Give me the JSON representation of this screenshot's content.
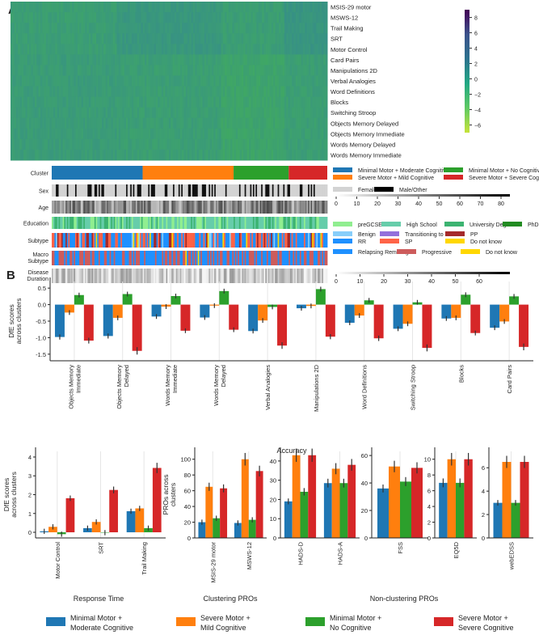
{
  "panel_labels": {
    "a": "A",
    "b": "B"
  },
  "heatmap": {
    "rows": [
      "MSIS-29 motor",
      "MSWS-12",
      "Trail Making",
      "SRT",
      "Motor Control",
      "Card Pairs",
      "Manipulations 2D",
      "Verbal Analogies",
      "Word Definitions",
      "Blocks",
      "Switching Stroop",
      "Objects Memory Delayed",
      "Objects Memory Immediate",
      "Words Memory Delayed",
      "Words Memory Immediate"
    ],
    "colorbar_ticks": [
      "8",
      "6",
      "4",
      "2",
      "0",
      "−2",
      "−4",
      "−6"
    ],
    "colorbar_range": [
      -7,
      9
    ]
  },
  "annotations": {
    "rows": [
      "Cluster",
      "Sex",
      "Age",
      "Education",
      "Subtype",
      "Macro Subtype",
      "Disease Duration"
    ],
    "cluster_legend": [
      {
        "label": "Minimal Motor + Moderate Cognitive",
        "color": "#1f77b4"
      },
      {
        "label": "Minimal Motor + No Cognitive",
        "color": "#2ca02c"
      },
      {
        "label": "Severe Motor + Mild Cognitive",
        "color": "#ff7f0e"
      },
      {
        "label": "Severe Motor + Severe Cognitive",
        "color": "#d62728"
      }
    ],
    "cluster_fractions": [
      0.33,
      0.33,
      0.2,
      0.14
    ],
    "sex_legend": [
      {
        "label": "Female",
        "color": "#d3d3d3"
      },
      {
        "label": "Male/Other",
        "color": "#000000"
      }
    ],
    "age_ticks": [
      "0",
      "10",
      "20",
      "30",
      "40",
      "50",
      "60",
      "70",
      "80"
    ],
    "education_legend": [
      {
        "label": "preGCSE",
        "color": "#90ee90"
      },
      {
        "label": "High School",
        "color": "#66cdaa"
      },
      {
        "label": "University Degree",
        "color": "#3cb371"
      },
      {
        "label": "PhD",
        "color": "#228b22"
      }
    ],
    "subtype_legend": [
      {
        "label": "Benign",
        "color": "#87cefa"
      },
      {
        "label": "Transitioning to SP",
        "color": "#9370db"
      },
      {
        "label": "PP",
        "color": "#a52a2a"
      },
      {
        "label": "RR",
        "color": "#1e90ff"
      },
      {
        "label": "SP",
        "color": "#ff6347"
      },
      {
        "label": "Do not know",
        "color": "#ffd700"
      }
    ],
    "macro_legend": [
      {
        "label": "Relapsing Remitting",
        "color": "#1e90ff"
      },
      {
        "label": "Progressive",
        "color": "#cd5c5c"
      },
      {
        "label": "Do not know",
        "color": "#ffd700"
      }
    ],
    "duration_ticks": [
      "0",
      "10",
      "20",
      "30",
      "40",
      "50",
      "60"
    ]
  },
  "colors": [
    "#1f77b4",
    "#ff7f0e",
    "#2ca02c",
    "#d62728"
  ],
  "chart_data": [
    {
      "type": "bar",
      "id": "accuracy",
      "xlabel": "Accuracy",
      "ylabel": "DfE scores across clusters",
      "ylim": [
        -1.7,
        0.7
      ],
      "yticks": [
        0.5,
        0.0,
        -0.5,
        -1.0,
        -1.5
      ],
      "tick_fmt": 1,
      "categories": [
        "Objects Memory Immediate",
        "Objects Memory Delayed",
        "Words Memory Immediate",
        "Words Memory Delayed",
        "Verbal Analogies",
        "Manipulations 2D",
        "Word Definitions",
        "Switching Stroop",
        "Blocks",
        "Card Pairs"
      ],
      "series": [
        {
          "name": "Minimal Motor + Moderate Cognitive",
          "values": [
            -0.98,
            -0.95,
            -0.36,
            -0.39,
            -0.8,
            -0.11,
            -0.55,
            -0.73,
            -0.42,
            -0.7
          ]
        },
        {
          "name": "Severe Motor + Mild Cognitive",
          "values": [
            -0.24,
            -0.4,
            -0.06,
            -0.03,
            -0.48,
            -0.04,
            -0.33,
            -0.58,
            -0.4,
            -0.51
          ]
        },
        {
          "name": "Minimal Motor + No Cognitive",
          "values": [
            0.29,
            0.32,
            0.26,
            0.41,
            -0.07,
            0.47,
            0.13,
            0.07,
            0.3,
            0.25
          ]
        },
        {
          "name": "Severe Motor + Severe Cognitive",
          "values": [
            -1.09,
            -1.4,
            -0.79,
            -0.76,
            -1.24,
            -0.97,
            -1.02,
            -1.31,
            -0.86,
            -1.28
          ]
        }
      ]
    },
    {
      "type": "bar",
      "id": "response",
      "xlabel": "Response Time",
      "ylabel": "DfE scores across clusters",
      "ylim": [
        -0.3,
        4.3
      ],
      "yticks": [
        0,
        1,
        2,
        3,
        4
      ],
      "tick_fmt": 0,
      "categories": [
        "Motor Control",
        "SRT",
        "Trail Making"
      ],
      "series": [
        {
          "name": "Minimal Motor + Moderate Cognitive",
          "values": [
            0.05,
            0.22,
            1.12
          ]
        },
        {
          "name": "Severe Motor + Mild Cognitive",
          "values": [
            0.29,
            0.55,
            1.27
          ]
        },
        {
          "name": "Minimal Motor + No Cognitive",
          "values": [
            -0.1,
            -0.02,
            0.22
          ]
        },
        {
          "name": "Severe Motor + Severe Cognitive",
          "values": [
            1.81,
            2.25,
            3.42
          ]
        }
      ]
    },
    {
      "type": "bar",
      "id": "clustering_pros",
      "xlabel": "Clustering PROs",
      "ylabel": "PROs across clusters",
      "ylim": [
        0,
        110
      ],
      "yticks": [
        0,
        20,
        40,
        60,
        80,
        100
      ],
      "tick_fmt": 0,
      "categories": [
        "MSIS-29 motor",
        "MSWS-12"
      ],
      "series": [
        {
          "name": "Minimal Motor + Moderate Cognitive",
          "values": [
            20,
            19
          ]
        },
        {
          "name": "Severe Motor + Mild Cognitive",
          "values": [
            65,
            100
          ]
        },
        {
          "name": "Minimal Motor + No Cognitive",
          "values": [
            25,
            23
          ]
        },
        {
          "name": "Severe Motor + Severe Cognitive",
          "values": [
            63,
            85
          ]
        }
      ]
    },
    {
      "type": "bar",
      "id": "hads",
      "xlabel": "",
      "ylabel": "",
      "ylim": [
        0,
        45
      ],
      "yticks": [
        0,
        10,
        20,
        30,
        40
      ],
      "tick_fmt": 0,
      "categories": [
        "HADS-D",
        "HADS-A"
      ],
      "series": [
        {
          "name": "Minimal Motor + Moderate Cognitive",
          "values": [
            19,
            28.5
          ]
        },
        {
          "name": "Severe Motor + Mild Cognitive",
          "values": [
            43,
            36
          ]
        },
        {
          "name": "Minimal Motor + No Cognitive",
          "values": [
            24,
            28.5
          ]
        },
        {
          "name": "Severe Motor + Severe Cognitive",
          "values": [
            43,
            38
          ]
        }
      ]
    },
    {
      "type": "bar",
      "id": "fss",
      "xlabel": "Non-clustering PROs",
      "ylabel": "",
      "ylim": [
        0,
        63
      ],
      "yticks": [
        0,
        20,
        40,
        60
      ],
      "tick_fmt": 0,
      "categories": [
        "FSS"
      ],
      "series": [
        {
          "name": "Minimal Motor + Moderate Cognitive",
          "values": [
            36
          ]
        },
        {
          "name": "Severe Motor + Mild Cognitive",
          "values": [
            52
          ]
        },
        {
          "name": "Minimal Motor + No Cognitive",
          "values": [
            41
          ]
        },
        {
          "name": "Severe Motor + Severe Cognitive",
          "values": [
            51
          ]
        }
      ]
    },
    {
      "type": "bar",
      "id": "eq5d",
      "xlabel": "",
      "ylabel": "",
      "ylim": [
        0,
        11
      ],
      "yticks": [
        0,
        2,
        4,
        6,
        8,
        10
      ],
      "tick_fmt": 0,
      "categories": [
        "EQ5D"
      ],
      "series": [
        {
          "name": "Minimal Motor + Moderate Cognitive",
          "values": [
            7
          ]
        },
        {
          "name": "Severe Motor + Mild Cognitive",
          "values": [
            10
          ]
        },
        {
          "name": "Minimal Motor + No Cognitive",
          "values": [
            7
          ]
        },
        {
          "name": "Severe Motor + Severe Cognitive",
          "values": [
            10
          ]
        }
      ]
    },
    {
      "type": "bar",
      "id": "webedss",
      "xlabel": "",
      "ylabel": "",
      "ylim": [
        0,
        7.4
      ],
      "yticks": [
        0,
        2,
        4,
        6
      ],
      "tick_fmt": 0,
      "categories": [
        "webEDSS"
      ],
      "series": [
        {
          "name": "Minimal Motor + Moderate Cognitive",
          "values": [
            3
          ]
        },
        {
          "name": "Severe Motor + Mild Cognitive",
          "values": [
            6.5
          ]
        },
        {
          "name": "Minimal Motor + No Cognitive",
          "values": [
            3
          ]
        },
        {
          "name": "Severe Motor + Severe Cognitive",
          "values": [
            6.5
          ]
        }
      ]
    }
  ],
  "legend": [
    {
      "line1": "Minimal Motor +",
      "line2": "Moderate Cognitive"
    },
    {
      "line1": "Severe Motor +",
      "line2": "Mild Cognitive"
    },
    {
      "line1": "Minimal Motor +",
      "line2": "No Cognitive"
    },
    {
      "line1": "Severe Motor +",
      "line2": "Severe Cognitive"
    }
  ]
}
